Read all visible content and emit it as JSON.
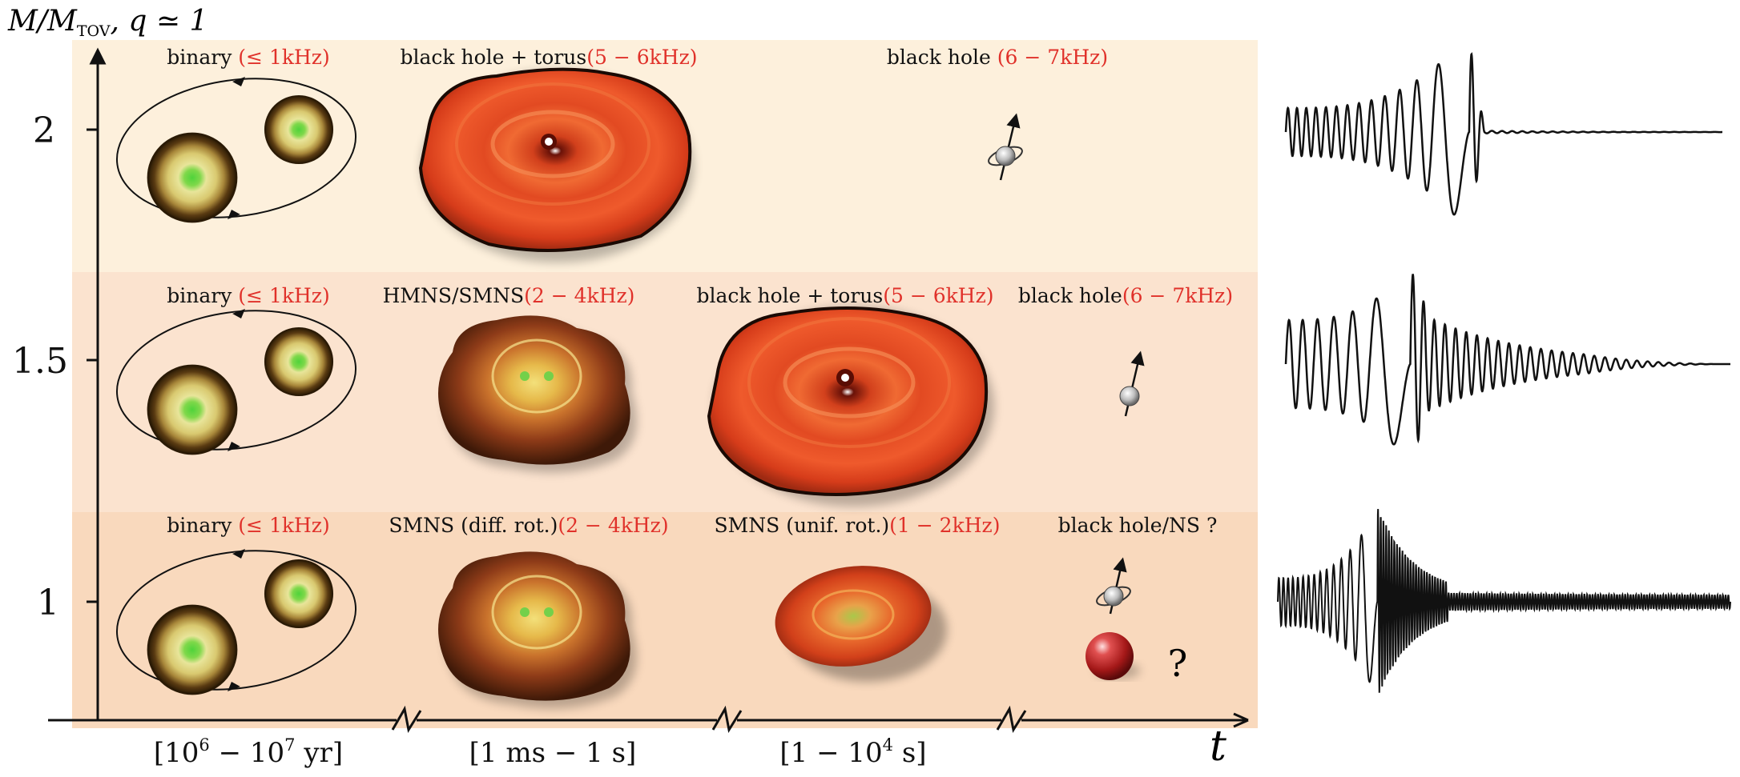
{
  "axes": {
    "y_label_main": "M/M",
    "y_label_sub": "TOV",
    "y_label_tail": ", q ≃ 1",
    "y_ticks": [
      "2",
      "1.5",
      "1"
    ],
    "x_label": "t"
  },
  "time_intervals": [
    {
      "open": "[10",
      "exp1": "6",
      "mid": " − 10",
      "exp2": "7",
      "close": " yr]"
    },
    {
      "text": "[1 ms − 1 s]"
    },
    {
      "open": "[1 − 10",
      "exp": "4",
      "close": " s]"
    }
  ],
  "rows": [
    {
      "mass": "2",
      "phases": [
        {
          "label": "binary",
          "freq": "(≤ 1kHz)"
        },
        {
          "label": "black hole + torus",
          "freq": "(5 − 6kHz)"
        },
        {
          "label": "black hole ",
          "freq": "(6 − 7kHz)"
        }
      ]
    },
    {
      "mass": "1.5",
      "phases": [
        {
          "label": "binary",
          "freq": "(≤ 1kHz)"
        },
        {
          "label": "HMNS/SMNS",
          "freq": "(2 − 4kHz)"
        },
        {
          "label": "black hole + torus",
          "freq": "(5 − 6kHz)"
        },
        {
          "label": "black hole",
          "freq": "(6 − 7kHz)"
        }
      ]
    },
    {
      "mass": "1",
      "phases": [
        {
          "label": "binary",
          "freq": "(≤ 1kHz)"
        },
        {
          "label": "SMNS (diff. rot.)",
          "freq": "(2 − 4kHz)"
        },
        {
          "label": "SMNS (unif. rot.)",
          "freq": "(1 − 2kHz)"
        },
        {
          "label": "black hole/NS ?",
          "freq": ""
        }
      ],
      "question_mark": "?"
    }
  ],
  "colors": {
    "band_top": "#fdf0dc",
    "band_mid": "#fbe3cf",
    "band_bottom": "#f9d9bd",
    "frequency_text": "#e0312a",
    "torus": "#e2401f",
    "waveform": "#111111"
  },
  "icons": [
    "neutron-star-icon",
    "black-hole-spin-icon",
    "torus-disk-icon",
    "hmns-blob-icon",
    "neutron-star-sphere-icon"
  ]
}
